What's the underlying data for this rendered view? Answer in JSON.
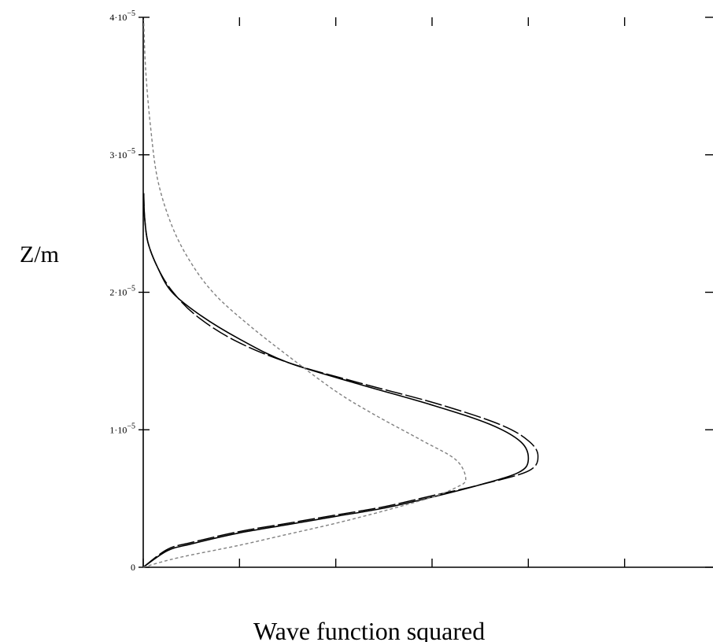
{
  "chart_data": {
    "type": "line",
    "orientation": "vertical-profile",
    "title": "",
    "xlabel": "Wave function squared",
    "ylabel": "Z/m",
    "xlim": [
      0,
      1.2
    ],
    "ylim": [
      0,
      4e-05
    ],
    "x_ticks": [
      0,
      0.2,
      0.4,
      0.6,
      0.8,
      1.0,
      1.2
    ],
    "x_tick_labels": [],
    "y_ticks": [
      0,
      1e-05,
      2e-05,
      3e-05,
      4e-05
    ],
    "y_tick_labels": [
      {
        "mantissa": "0",
        "exponent": ""
      },
      {
        "mantissa": "1·10",
        "exponent": "−5"
      },
      {
        "mantissa": "2·10",
        "exponent": "−5"
      },
      {
        "mantissa": "3·10",
        "exponent": "−5"
      },
      {
        "mantissa": "4·10",
        "exponent": "−5"
      }
    ],
    "grid": false,
    "legend": "none",
    "series": [
      {
        "style": "solid",
        "color": "#000000",
        "points": [
          [
            0,
            0
          ],
          [
            0.05,
            1.2e-06
          ],
          [
            0.1,
            1.7e-06
          ],
          [
            0.2,
            2.5e-06
          ],
          [
            0.3,
            3.1e-06
          ],
          [
            0.4,
            3.7e-06
          ],
          [
            0.5,
            4.3e-06
          ],
          [
            0.6,
            5.1e-06
          ],
          [
            0.7,
            6e-06
          ],
          [
            0.78,
            6.9e-06
          ],
          [
            0.8,
            7.8e-06
          ],
          [
            0.785,
            9.1e-06
          ],
          [
            0.72,
            1.04e-05
          ],
          [
            0.6,
            1.18e-05
          ],
          [
            0.45,
            1.33e-05
          ],
          [
            0.3,
            1.49e-05
          ],
          [
            0.2,
            1.66e-05
          ],
          [
            0.12,
            1.83e-05
          ],
          [
            0.06,
            2e-05
          ],
          [
            0.03,
            2.18e-05
          ],
          [
            0.01,
            2.36e-05
          ],
          [
            0.003,
            2.54e-05
          ],
          [
            0.001,
            2.72e-05
          ]
        ]
      },
      {
        "style": "dashed",
        "color": "#000000",
        "points": [
          [
            0,
            0
          ],
          [
            0.05,
            1.3e-06
          ],
          [
            0.1,
            1.8e-06
          ],
          [
            0.2,
            2.6e-06
          ],
          [
            0.3,
            3.2e-06
          ],
          [
            0.4,
            3.8e-06
          ],
          [
            0.5,
            4.4e-06
          ],
          [
            0.6,
            5.2e-06
          ],
          [
            0.7,
            6e-06
          ],
          [
            0.8,
            7e-06
          ],
          [
            0.82,
            8.1e-06
          ],
          [
            0.8,
            9.2e-06
          ],
          [
            0.74,
            1.04e-05
          ],
          [
            0.61,
            1.19e-05
          ],
          [
            0.45,
            1.34e-05
          ],
          [
            0.3,
            1.49e-05
          ],
          [
            0.19,
            1.65e-05
          ],
          [
            0.11,
            1.83e-05
          ],
          [
            0.06,
            2.01e-05
          ],
          [
            0.03,
            2.18e-05
          ],
          [
            0.01,
            2.36e-05
          ],
          [
            0.003,
            2.54e-05
          ],
          [
            0.001,
            2.72e-05
          ]
        ]
      },
      {
        "style": "dotted",
        "color": "#808080",
        "points": [
          [
            0,
            0
          ],
          [
            0.05,
            5e-07
          ],
          [
            0.1,
            9e-07
          ],
          [
            0.2,
            1.6e-06
          ],
          [
            0.3,
            2.4e-06
          ],
          [
            0.4,
            3.2e-06
          ],
          [
            0.5,
            4.1e-06
          ],
          [
            0.6,
            5.1e-06
          ],
          [
            0.65,
            5.8e-06
          ],
          [
            0.67,
            6.4e-06
          ],
          [
            0.65,
            7.8e-06
          ],
          [
            0.58,
            9.2e-06
          ],
          [
            0.48,
            1.11e-05
          ],
          [
            0.4,
            1.28e-05
          ],
          [
            0.3,
            1.54e-05
          ],
          [
            0.22,
            1.76e-05
          ],
          [
            0.15,
            1.98e-05
          ],
          [
            0.1,
            2.21e-05
          ],
          [
            0.06,
            2.48e-05
          ],
          [
            0.03,
            2.82e-05
          ],
          [
            0.015,
            3.21e-05
          ],
          [
            0.005,
            3.62e-05
          ],
          [
            0.001,
            3.98e-05
          ]
        ]
      }
    ]
  }
}
